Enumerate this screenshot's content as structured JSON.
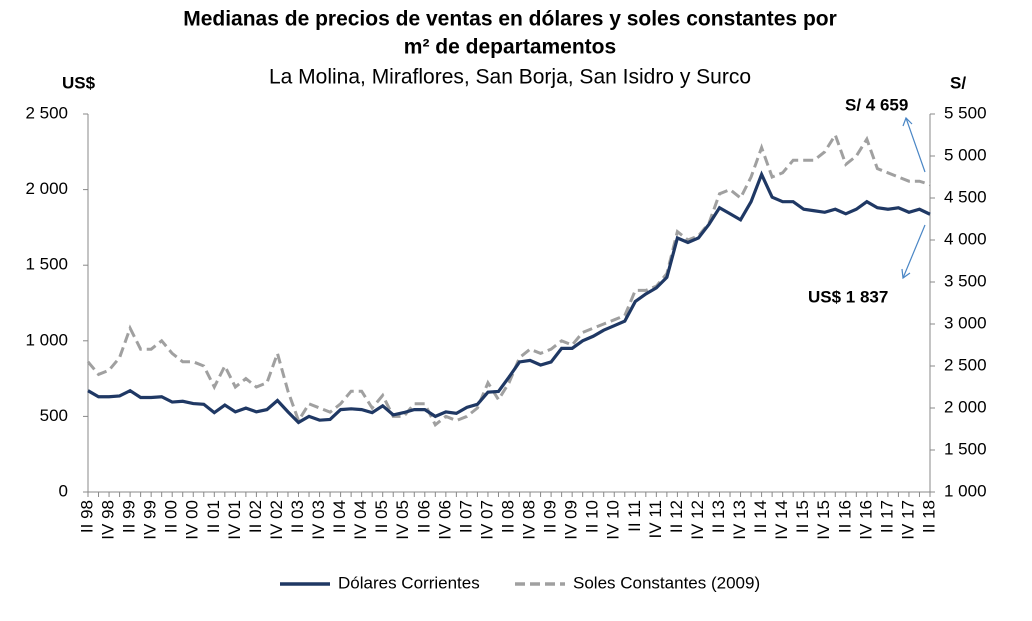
{
  "chart_data": {
    "type": "line",
    "title": [
      "Medianas de precios de ventas en dólares y soles constantes por",
      "m² de departamentos"
    ],
    "subtitle": "La Molina, Miraflores, San Borja, San Isidro y Surco",
    "y_label": "US$",
    "y2_label": "S/",
    "categories": [
      "II 98",
      null,
      "IV 98",
      null,
      "II 99",
      null,
      "IV 99",
      null,
      "II 00",
      null,
      "IV 00",
      null,
      "II 01",
      null,
      "IV 01",
      null,
      "II 02",
      null,
      "IV 02",
      null,
      "II 03",
      null,
      "IV 03",
      null,
      "II 04",
      null,
      "IV 04",
      null,
      "II 05",
      null,
      "IV 05",
      null,
      "II 06",
      null,
      "IV 06",
      null,
      "II 07",
      null,
      "IV 07",
      null,
      "II 08",
      null,
      "IV 08",
      null,
      "II 09",
      null,
      "IV 09",
      null,
      "II 10",
      null,
      "IV 10",
      null,
      "II 11",
      null,
      "IV 11",
      null,
      "II 12",
      null,
      "IV 12",
      null,
      "II 13",
      null,
      "IV 13",
      null,
      "II 14",
      null,
      "IV 14",
      null,
      "II 15",
      null,
      "IV 15",
      null,
      "II 16",
      null,
      "IV 16",
      null,
      "II 17",
      null,
      "IV 17",
      null,
      "II 18"
    ],
    "series": [
      {
        "name": "Dólares Corrientes",
        "color": "#1f3864",
        "dash": false,
        "values": [
          670,
          630,
          630,
          635,
          670,
          625,
          625,
          630,
          595,
          600,
          585,
          580,
          525,
          575,
          530,
          555,
          530,
          545,
          605,
          530,
          460,
          500,
          475,
          480,
          545,
          550,
          545,
          525,
          570,
          510,
          525,
          545,
          545,
          500,
          530,
          520,
          560,
          580,
          660,
          665,
          760,
          860,
          870,
          840,
          860,
          950,
          950,
          1000,
          1030,
          1070,
          1100,
          1130,
          1260,
          1310,
          1350,
          1420,
          1680,
          1650,
          1680,
          1770,
          1880,
          1840,
          1800,
          1920,
          2100,
          1950,
          1920,
          1920,
          1870,
          1860,
          1850,
          1870,
          1840,
          1870,
          1920,
          1880,
          1870,
          1880,
          1850,
          1870,
          1837
        ]
      },
      {
        "name": "Soles Constantes (2009)",
        "color": "#a0a0a0",
        "dash": true,
        "axis": "y2",
        "values": [
          2550,
          2400,
          2450,
          2600,
          2950,
          2700,
          2700,
          2800,
          2650,
          2550,
          2550,
          2500,
          2250,
          2500,
          2250,
          2350,
          2250,
          2300,
          2650,
          2200,
          1850,
          2050,
          2000,
          1950,
          2050,
          2200,
          2200,
          2000,
          2150,
          1900,
          1900,
          2050,
          2050,
          1800,
          1900,
          1850,
          1900,
          2000,
          2300,
          2100,
          2300,
          2600,
          2700,
          2650,
          2700,
          2800,
          2750,
          2900,
          2950,
          3000,
          3050,
          3100,
          3400,
          3400,
          3450,
          3600,
          4100,
          4000,
          4050,
          4200,
          4550,
          4600,
          4500,
          4750,
          5100,
          4750,
          4800,
          4950,
          4950,
          4950,
          5050,
          5250,
          4900,
          5000,
          5200,
          4850,
          4800,
          4750,
          4700,
          4700,
          4659
        ]
      }
    ],
    "ylim": [
      0,
      2500
    ],
    "yticks": [
      0,
      500,
      {
        "value": 1000,
        "label": "1 000"
      },
      {
        "value": 1500,
        "label": "1 500"
      },
      {
        "value": 2000,
        "label": "2 000"
      },
      {
        "value": 2500,
        "label": "2 500"
      }
    ],
    "y2lim": [
      1000,
      5500
    ],
    "y2ticks": [
      {
        "value": 1000,
        "label": "1 000"
      },
      {
        "value": 1500,
        "label": "1 500"
      },
      {
        "value": 2000,
        "label": "2 000"
      },
      {
        "value": 2500,
        "label": "2 500"
      },
      {
        "value": 3000,
        "label": "3 000"
      },
      {
        "value": 3500,
        "label": "3 500"
      },
      {
        "value": 4000,
        "label": "4 000"
      },
      {
        "value": 4500,
        "label": "4 500"
      },
      {
        "value": 5000,
        "label": "5 000"
      },
      {
        "value": 5500,
        "label": "5 500"
      }
    ],
    "annotations": [
      "S/ 4 659",
      "US$ 1 837"
    ],
    "grid": false,
    "legend": "bottom"
  }
}
